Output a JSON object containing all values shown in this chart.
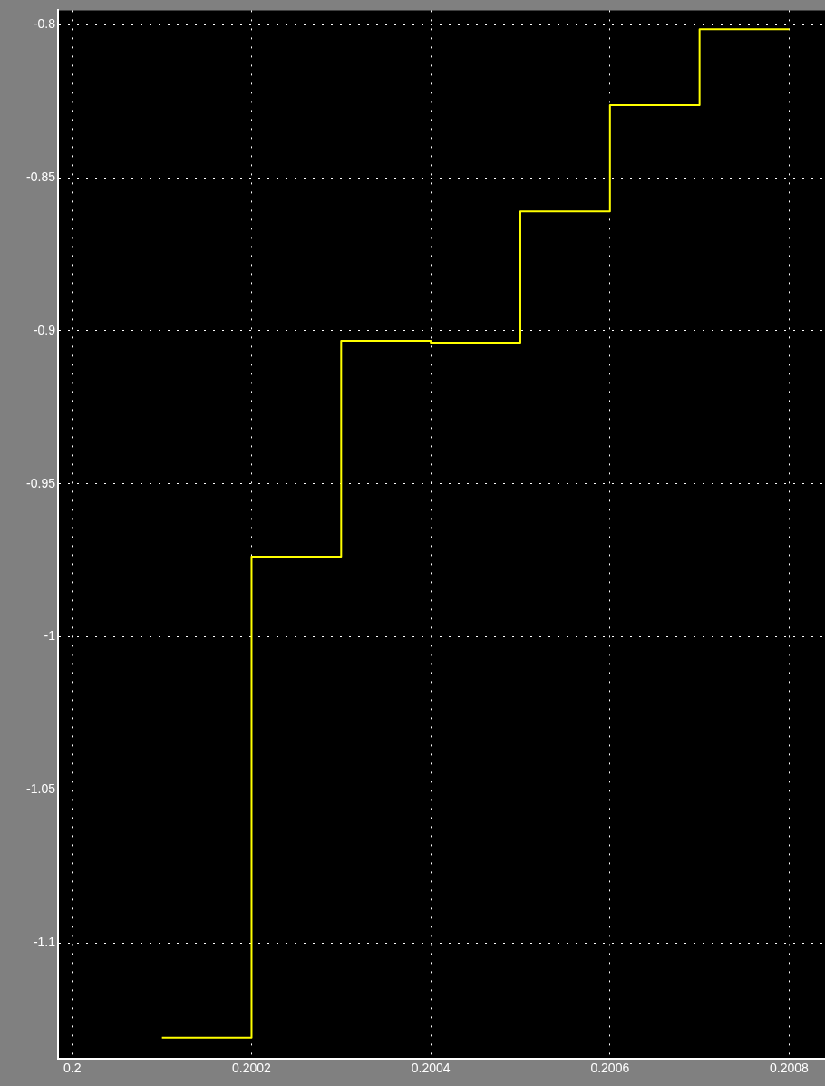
{
  "chart_data": {
    "type": "step",
    "x": [
      0.2001,
      0.2002,
      0.2003,
      0.2004,
      0.2005,
      0.2006,
      0.2007,
      0.2008
    ],
    "series": [
      {
        "color": "#ffff00",
        "values": [
          -1.131,
          -0.9738,
          -0.9033,
          -0.9039,
          -0.861,
          -0.8263,
          -0.8015,
          -0.8015
        ]
      }
    ],
    "xlim": [
      0.199984,
      0.20084
    ],
    "ylim": [
      -1.1379,
      -0.7953
    ],
    "xticks": [
      0.2,
      0.2002,
      0.2004,
      0.2006,
      0.2008
    ],
    "yticks": [
      -1.1,
      -1.05,
      -1,
      -0.95,
      -0.9,
      -0.85,
      -0.8
    ],
    "grid": true
  }
}
